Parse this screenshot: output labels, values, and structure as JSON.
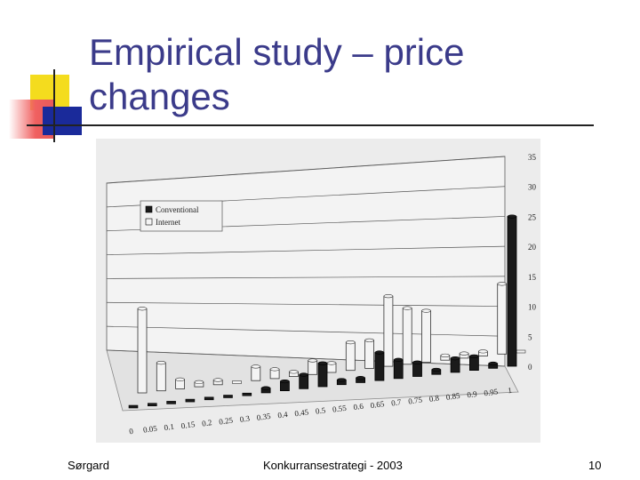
{
  "slide": {
    "title_line1": "Empirical study – price",
    "title_line2": "changes",
    "footer_left": "Sørgard",
    "footer_center": "Konkurransestrategi - 2003",
    "footer_right": "10"
  },
  "colors": {
    "title": "#3b3b8a",
    "accent_yellow": "#f4dc1e",
    "accent_red": "#e85a5a",
    "accent_blue": "#1a2a9a",
    "conventional": "#1a1a1a",
    "internet": "#f4f4f4"
  },
  "chart_data": {
    "type": "bar",
    "title": "",
    "xlabel": "",
    "ylabel": "",
    "ylim": [
      0,
      35
    ],
    "yticks": [
      "0",
      "5",
      "10",
      "15",
      "20",
      "25",
      "30",
      "35"
    ],
    "grid": true,
    "legend_position": "top-left",
    "categories": [
      "0",
      "0.05",
      "0.1",
      "0.15",
      "0.2",
      "0.25",
      "0.3",
      "0.35",
      "0.4",
      "0.45",
      "0.5",
      "0.55",
      "0.6",
      "0.65",
      "0.7",
      "0.75",
      "0.8",
      "0.85",
      "0.9",
      "0.95",
      "1"
    ],
    "series": [
      {
        "name": "Conventional",
        "values": [
          0,
          0,
          0,
          0,
          0,
          0,
          0,
          1,
          2,
          3,
          5,
          1,
          1,
          6,
          4,
          3,
          1,
          3,
          3,
          1,
          32
        ]
      },
      {
        "name": "Internet",
        "values": [
          18,
          6,
          2,
          1,
          1,
          0,
          3,
          2,
          1,
          3,
          2,
          6,
          6,
          15,
          12,
          11,
          1,
          1,
          1,
          15,
          0
        ]
      }
    ]
  }
}
